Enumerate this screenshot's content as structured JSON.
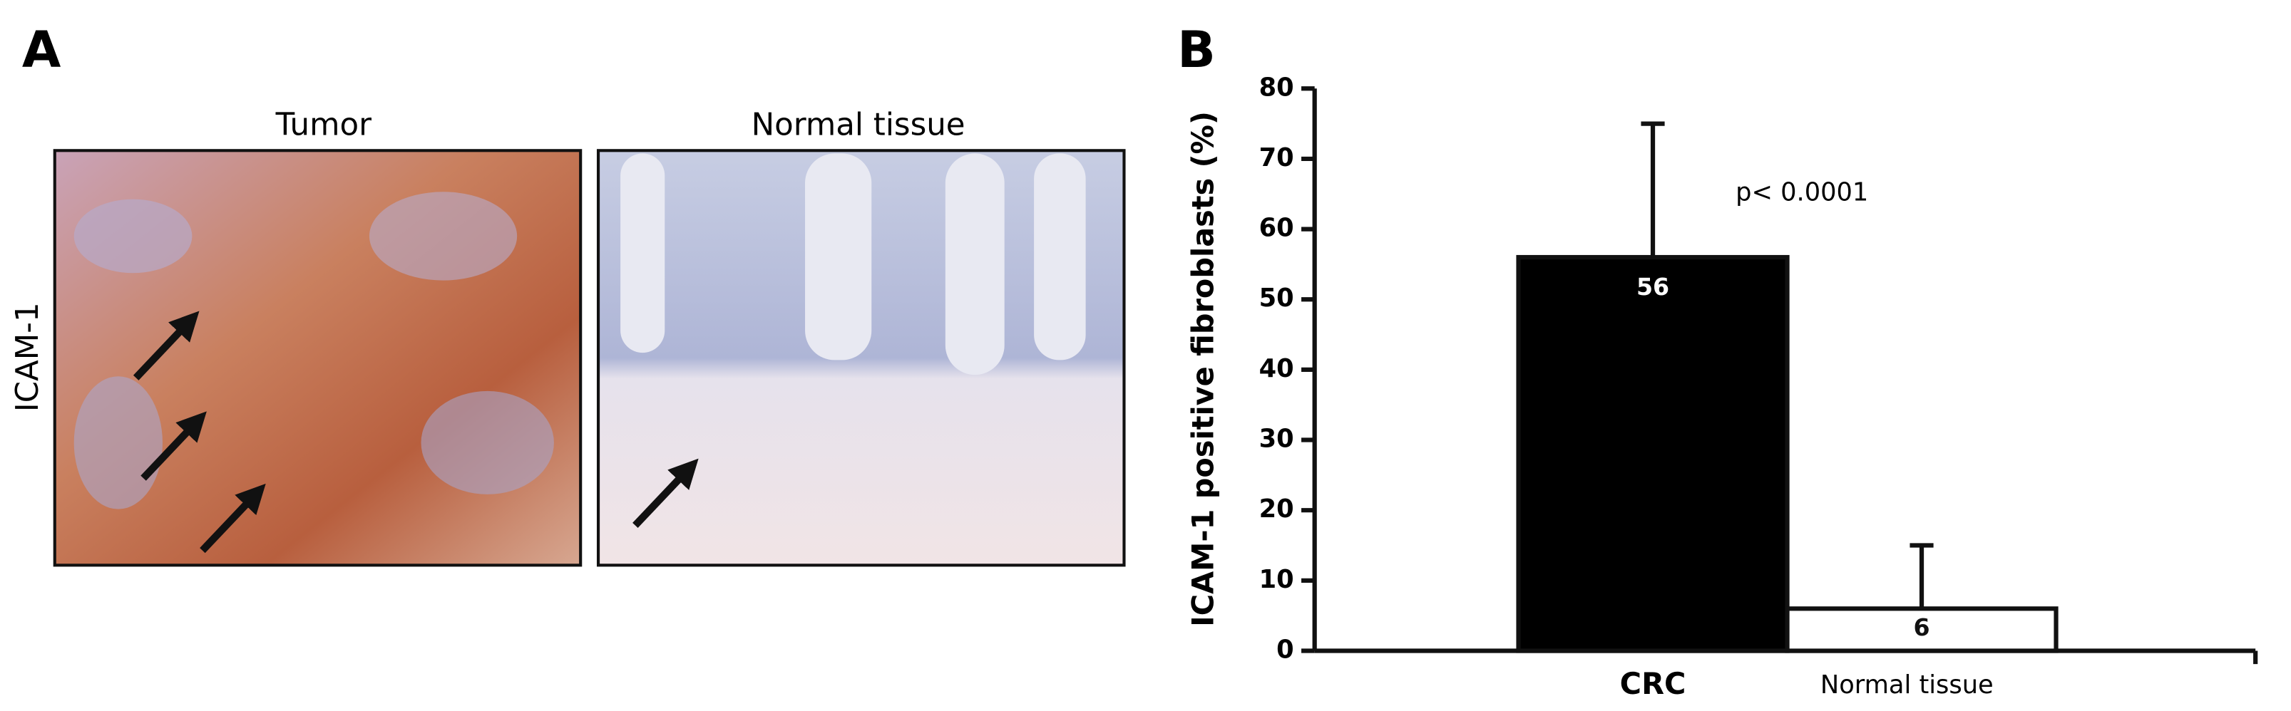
{
  "panel_a": {
    "label": "A",
    "titles": [
      "Tumor",
      "Normal tissue"
    ],
    "row_label": "ICAM-1"
  },
  "chart_data": {
    "type": "bar",
    "panel_label": "B",
    "ylabel": "ICAM-1 positive fibroblasts (%)",
    "annotation": "p< 0.0001",
    "categories": [
      "CRC",
      "Normal tissue"
    ],
    "values": [
      56,
      6
    ],
    "errors": [
      19,
      9
    ],
    "colors": [
      "#000000",
      "#ffffff"
    ],
    "ylim": [
      0,
      80
    ],
    "yticks": [
      0,
      10,
      20,
      30,
      40,
      50,
      60,
      70,
      80
    ]
  }
}
